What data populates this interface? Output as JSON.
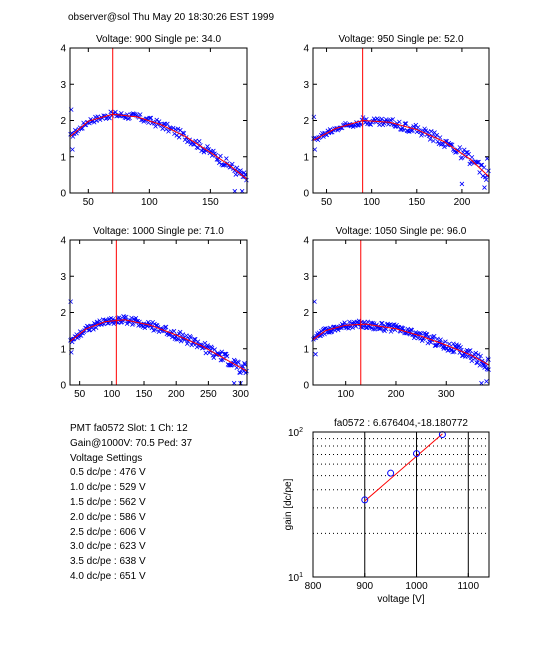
{
  "header": "observer@sol  Thu May 20 18:30:26 EST 1999",
  "info": {
    "lines": [
      "PMT fa0572 Slot: 1 Ch: 12",
      "Gain@1000V: 70.5 Ped: 37",
      "Voltage Settings",
      "0.5 dc/pe : 476 V",
      "1.0 dc/pe : 529 V",
      "1.5 dc/pe : 562 V",
      "2.0 dc/pe : 586 V",
      "2.5 dc/pe : 606 V",
      "3.0 dc/pe : 623 V",
      "3.5 dc/pe : 638 V",
      "4.0 dc/pe : 651 V"
    ]
  },
  "colors": {
    "points": "#0000ff",
    "fit": "#ff0000",
    "marker": "#ff0000",
    "axes": "#000000"
  },
  "chart_data": [
    {
      "type": "scatter",
      "title": "Voltage: 900 Single pe: 34.0",
      "xlim": [
        35,
        180
      ],
      "ylim": [
        0,
        4
      ],
      "xticks": [
        50,
        100,
        150
      ],
      "yticks": [
        0,
        1,
        2,
        3,
        4
      ],
      "marker_x": 70,
      "fit": [
        [
          35,
          1.55
        ],
        [
          50,
          1.98
        ],
        [
          70,
          2.17
        ],
        [
          90,
          2.1
        ],
        [
          110,
          1.88
        ],
        [
          130,
          1.55
        ],
        [
          150,
          1.12
        ],
        [
          165,
          0.78
        ],
        [
          180,
          0.38
        ]
      ],
      "scatter_extremes": [
        [
          36,
          2.3
        ],
        [
          37,
          1.2
        ],
        [
          170,
          0.05
        ],
        [
          176,
          0.05
        ],
        [
          178,
          0.45
        ]
      ],
      "noise": 0.07,
      "n_points": 150
    },
    {
      "type": "scatter",
      "title": "Voltage: 950 Single pe: 52.0",
      "xlim": [
        35,
        230
      ],
      "ylim": [
        0,
        4
      ],
      "xticks": [
        50,
        100,
        150,
        200
      ],
      "yticks": [
        0,
        1,
        2,
        3,
        4
      ],
      "marker_x": 90,
      "fit": [
        [
          35,
          1.45
        ],
        [
          60,
          1.78
        ],
        [
          90,
          2.0
        ],
        [
          120,
          1.95
        ],
        [
          150,
          1.75
        ],
        [
          180,
          1.42
        ],
        [
          210,
          0.92
        ],
        [
          230,
          0.45
        ]
      ],
      "scatter_extremes": [
        [
          36,
          2.1
        ],
        [
          37,
          1.2
        ],
        [
          200,
          0.25
        ],
        [
          225,
          0.15
        ],
        [
          228,
          0.95
        ]
      ],
      "noise": 0.08,
      "n_points": 160
    },
    {
      "type": "scatter",
      "title": "Voltage: 1000 Single pe: 71.0",
      "xlim": [
        35,
        310
      ],
      "ylim": [
        0,
        4
      ],
      "xticks": [
        50,
        100,
        150,
        200,
        250,
        300
      ],
      "yticks": [
        0,
        1,
        2,
        3,
        4
      ],
      "marker_x": 107,
      "fit": [
        [
          35,
          1.2
        ],
        [
          60,
          1.55
        ],
        [
          90,
          1.75
        ],
        [
          120,
          1.8
        ],
        [
          160,
          1.65
        ],
        [
          200,
          1.38
        ],
        [
          240,
          1.08
        ],
        [
          280,
          0.68
        ],
        [
          310,
          0.38
        ]
      ],
      "scatter_extremes": [
        [
          36,
          2.3
        ],
        [
          37,
          0.9
        ],
        [
          290,
          0.05
        ],
        [
          300,
          0.05
        ],
        [
          306,
          0.6
        ]
      ],
      "noise": 0.08,
      "n_points": 200
    },
    {
      "type": "scatter",
      "title": "Voltage: 1050 Single pe: 96.0",
      "xlim": [
        35,
        385
      ],
      "ylim": [
        0,
        4
      ],
      "xticks": [
        100,
        200,
        300
      ],
      "yticks": [
        0,
        1,
        2,
        3,
        4
      ],
      "marker_x": 130,
      "fit": [
        [
          35,
          1.25
        ],
        [
          60,
          1.5
        ],
        [
          100,
          1.65
        ],
        [
          140,
          1.68
        ],
        [
          200,
          1.55
        ],
        [
          250,
          1.35
        ],
        [
          300,
          1.1
        ],
        [
          350,
          0.82
        ],
        [
          385,
          0.55
        ]
      ],
      "scatter_extremes": [
        [
          38,
          2.3
        ],
        [
          40,
          0.85
        ],
        [
          370,
          0.05
        ],
        [
          380,
          0.1
        ],
        [
          384,
          0.7
        ]
      ],
      "noise": 0.08,
      "n_points": 220
    },
    {
      "type": "line",
      "title": "fa0572 : 6.676404,-18.180772",
      "xlabel": "voltage [V]",
      "ylabel": "gain [dc/pe]",
      "xlim": [
        800,
        1140
      ],
      "ylim": [
        10,
        100
      ],
      "yscale": "log",
      "xticks": [
        800,
        900,
        1000,
        1100
      ],
      "yticks": [
        10,
        100
      ],
      "ytick_labels": [
        "10^1",
        "10^2"
      ],
      "grid_y": [
        20,
        30,
        40,
        50,
        60,
        70,
        80,
        90
      ],
      "grid_x": [
        900,
        1000,
        1100
      ],
      "points": [
        [
          900,
          34.0
        ],
        [
          950,
          52.0
        ],
        [
          1000,
          71.0
        ],
        [
          1050,
          96.0
        ]
      ],
      "fit_line": [
        [
          900,
          33.4
        ],
        [
          1050,
          97.0
        ]
      ]
    }
  ]
}
